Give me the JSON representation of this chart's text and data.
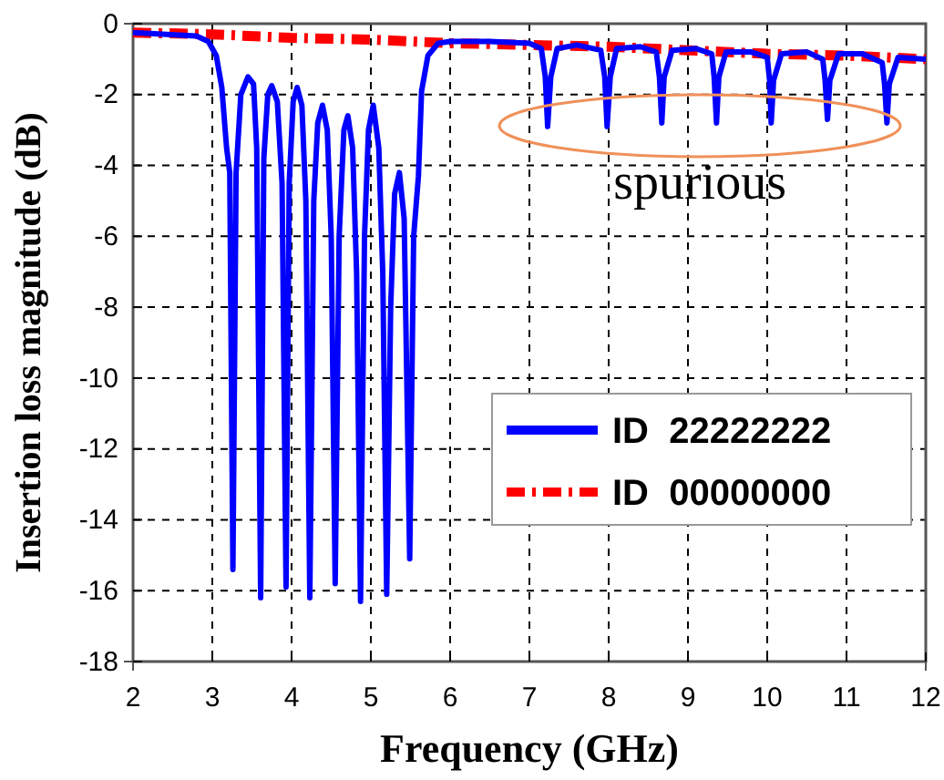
{
  "chart_data": {
    "type": "line",
    "xlabel": "Frequency (GHz)",
    "ylabel": "Insertion loss magnitude (dB)",
    "xlim": [
      2,
      12
    ],
    "xticks": [
      2,
      3,
      4,
      5,
      6,
      7,
      8,
      9,
      10,
      11,
      12
    ],
    "ylim": [
      -18,
      0
    ],
    "yticks": [
      -18,
      -16,
      -14,
      -12,
      -10,
      -8,
      -6,
      -4,
      -2,
      0
    ],
    "grid": true,
    "legend": "bottom right",
    "marker": "none",
    "annotations": [
      "spurious"
    ],
    "series": [
      {
        "name": "ID  22222222",
        "color": "#0000ff",
        "line_style": "solid",
        "x": [
          2,
          2.8,
          2.95,
          3.05,
          3.12,
          3.18,
          3.22,
          3.26,
          3.3,
          3.36,
          3.45,
          3.52,
          3.56,
          3.61,
          3.65,
          3.7,
          3.75,
          3.82,
          3.88,
          3.93,
          3.97,
          4.02,
          4.07,
          4.13,
          4.18,
          4.23,
          4.28,
          4.33,
          4.39,
          4.45,
          4.5,
          4.55,
          4.6,
          4.66,
          4.71,
          4.77,
          4.82,
          4.87,
          4.92,
          4.97,
          5.03,
          5.1,
          5.15,
          5.2,
          5.25,
          5.3,
          5.36,
          5.42,
          5.49,
          5.54,
          5.6,
          5.64,
          5.72,
          5.85,
          6,
          6.5,
          7,
          7.15,
          7.2,
          7.23,
          7.27,
          7.35,
          7.6,
          7.9,
          7.95,
          7.98,
          8.02,
          8.1,
          8.4,
          8.6,
          8.64,
          8.67,
          8.7,
          8.8,
          9.1,
          9.3,
          9.33,
          9.36,
          9.39,
          9.48,
          9.8,
          10,
          10.03,
          10.05,
          10.08,
          10.18,
          10.5,
          10.7,
          10.73,
          10.76,
          10.79,
          10.9,
          11.2,
          11.45,
          11.48,
          11.51,
          11.54,
          11.65,
          12
        ],
        "values": [
          -0.25,
          -0.35,
          -0.5,
          -0.9,
          -1.8,
          -3.5,
          -4.2,
          -15.4,
          -4.2,
          -2,
          -1.5,
          -1.7,
          -3.5,
          -16.2,
          -3.8,
          -2,
          -1.75,
          -2.2,
          -4.5,
          -15.9,
          -4.5,
          -2.2,
          -1.8,
          -2.3,
          -5,
          -16.2,
          -5,
          -2.8,
          -2.3,
          -3,
          -6,
          -15.8,
          -6,
          -3,
          -2.6,
          -3.5,
          -7,
          -16.3,
          -6,
          -3,
          -2.3,
          -3.5,
          -7,
          -16.1,
          -8,
          -4.8,
          -4.2,
          -5.5,
          -15.1,
          -6,
          -4.3,
          -1.9,
          -0.9,
          -0.55,
          -0.5,
          -0.5,
          -0.55,
          -0.7,
          -1.5,
          -2.9,
          -1.5,
          -0.7,
          -0.6,
          -0.75,
          -1.5,
          -2.9,
          -1.5,
          -0.7,
          -0.65,
          -0.8,
          -1.5,
          -2.8,
          -1.5,
          -0.75,
          -0.7,
          -0.85,
          -1.5,
          -2.8,
          -1.5,
          -0.8,
          -0.8,
          -0.95,
          -1.6,
          -2.8,
          -1.6,
          -0.85,
          -0.8,
          -1,
          -1.6,
          -2.7,
          -1.6,
          -0.85,
          -0.85,
          -1.1,
          -1.7,
          -2.8,
          -1.7,
          -0.95,
          -1
        ]
      },
      {
        "name": "ID  00000000",
        "color": "#ff0000",
        "line_style": "dashdot",
        "x": [
          2,
          3,
          4,
          5,
          6,
          7,
          8,
          9,
          10,
          11,
          12
        ],
        "values": [
          -0.25,
          -0.3,
          -0.4,
          -0.45,
          -0.55,
          -0.6,
          -0.65,
          -0.75,
          -0.85,
          -0.9,
          -1
        ]
      }
    ]
  }
}
